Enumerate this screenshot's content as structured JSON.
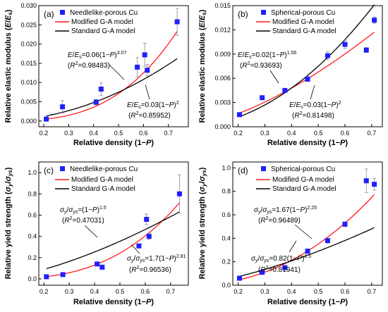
{
  "chart_data": [
    {
      "type": "scatter",
      "panel_label": "(a)",
      "xlabel": "Relative density (1−P)",
      "ylabel": "Relative elastic modulus (E/Es)",
      "xlim": [
        0.18,
        0.78
      ],
      "ylim": [
        -0.0015,
        0.03
      ],
      "xticks": [
        0.2,
        0.3,
        0.4,
        0.5,
        0.6,
        0.7
      ],
      "yticks": [
        0.0,
        0.005,
        0.01,
        0.015,
        0.02,
        0.025,
        0.03
      ],
      "ytick_labels": [
        "0.000",
        "0.005",
        "0.010",
        "0.015",
        "0.020",
        "0.025",
        "0.030"
      ],
      "legend": [
        "Needlelike-porous Cu",
        "Modified G-A model",
        "Standard G-A model"
      ],
      "colors": {
        "points": "#1f1fff",
        "modified": "#ff1a1a",
        "standard": "#000000"
      },
      "series": [
        {
          "name": "Needlelike-porous Cu",
          "x": [
            0.21,
            0.275,
            0.41,
            0.43,
            0.575,
            0.605,
            0.615,
            0.735
          ],
          "y": [
            0.0005,
            0.0037,
            0.0049,
            0.0083,
            0.014,
            0.0172,
            0.0132,
            0.0258
          ],
          "err": [
            0.0004,
            0.0016,
            0.0007,
            0.0016,
            0.0025,
            0.003,
            0.0015,
            0.0035
          ]
        }
      ],
      "curves": [
        {
          "name": "Modified G-A model",
          "a": 0.06,
          "n": 3.07
        },
        {
          "name": "Standard G-A model",
          "a": 0.03,
          "n": 2
        }
      ],
      "annotations": [
        {
          "eq": "E/Es=0.06(1−P)^3.07",
          "r2": "(R2=0.98483)"
        },
        {
          "eq": "E/Es=0.03(1−P)^2",
          "r2": "(R2=0.85952)"
        }
      ]
    },
    {
      "type": "scatter",
      "panel_label": "(b)",
      "xlabel": "Relative density (1−P)",
      "ylabel": "Relative elastic modulus (E/Es)",
      "xlim": [
        0.18,
        0.74
      ],
      "ylim": [
        0.0,
        0.015
      ],
      "xticks": [
        0.2,
        0.3,
        0.4,
        0.5,
        0.6,
        0.7
      ],
      "yticks": [
        0.0,
        0.003,
        0.006,
        0.009,
        0.012,
        0.015
      ],
      "ytick_labels": [
        "0.000",
        "0.003",
        "0.006",
        "0.009",
        "0.012",
        "0.015"
      ],
      "legend": [
        "Spherical-porous Cu",
        "Modified G-A model",
        "Standard G-A model"
      ],
      "colors": {
        "points": "#1f1fff",
        "modified": "#ff1a1a",
        "standard": "#000000"
      },
      "series": [
        {
          "name": "Spherical-porous Cu",
          "x": [
            0.205,
            0.29,
            0.375,
            0.46,
            0.535,
            0.6,
            0.68,
            0.71
          ],
          "y": [
            0.0015,
            0.0036,
            0.0045,
            0.0059,
            0.0088,
            0.0102,
            0.0095,
            0.0132
          ],
          "err": [
            0.0002,
            0.0002,
            0.0002,
            0.0003,
            0.0005,
            0.0005,
            0.0003,
            0.0004
          ]
        }
      ],
      "curves": [
        {
          "name": "Modified G-A model",
          "a": 0.02,
          "n": 1.56
        },
        {
          "name": "Standard G-A model",
          "a": 0.03,
          "n": 2
        }
      ],
      "annotations": [
        {
          "eq": "E/Es=0.02(1−P)^1.56",
          "r2": "(R2=0.93693)"
        },
        {
          "eq": "E/Es=0.03(1−P)^2",
          "r2": "(R2=0.81498)"
        }
      ]
    },
    {
      "type": "scatter",
      "panel_label": "(c)",
      "xlabel": "Relative density (1−P)",
      "ylabel": "Relative yield strength (σy/σys)",
      "xlim": [
        0.18,
        0.77
      ],
      "ylim": [
        -0.06,
        1.1
      ],
      "xticks": [
        0.2,
        0.3,
        0.4,
        0.5,
        0.6,
        0.7
      ],
      "yticks": [
        0.0,
        0.2,
        0.4,
        0.6,
        0.8,
        1.0
      ],
      "ytick_labels": [
        "0.0",
        "0.2",
        "0.4",
        "0.6",
        "0.8",
        "1.0"
      ],
      "legend": [
        "Needlelike-porous Cu",
        "Modified G-A model",
        "Standard G-A model"
      ],
      "colors": {
        "points": "#1f1fff",
        "modified": "#ff1a1a",
        "standard": "#000000"
      },
      "series": [
        {
          "name": "Needlelike-porous Cu",
          "x": [
            0.21,
            0.275,
            0.41,
            0.43,
            0.575,
            0.605,
            0.615,
            0.735
          ],
          "y": [
            0.02,
            0.04,
            0.14,
            0.11,
            0.31,
            0.56,
            0.4,
            0.8
          ],
          "err": [
            0.01,
            0.01,
            0.01,
            0.01,
            0.02,
            0.05,
            0.03,
            0.18
          ]
        }
      ],
      "curves": [
        {
          "name": "Modified G-A model",
          "a": 1.7,
          "n": 2.81
        },
        {
          "name": "Standard G-A model",
          "a": 1.0,
          "n": 1.5
        }
      ],
      "annotations": [
        {
          "eq": "σy/σys=(1−P)^1.5",
          "r2": "(R2=0.47031)"
        },
        {
          "eq": "σy/σys=1.7(1−P)^2.81",
          "r2": "(R2=0.96536)"
        }
      ]
    },
    {
      "type": "scatter",
      "panel_label": "(d)",
      "xlabel": "Relative density (1−P)",
      "ylabel": "Relative yield strength (σy/σys)",
      "xlim": [
        0.18,
        0.74
      ],
      "ylim": [
        0.0,
        1.05
      ],
      "xticks": [
        0.2,
        0.3,
        0.4,
        0.5,
        0.6,
        0.7
      ],
      "yticks": [
        0.0,
        0.2,
        0.4,
        0.6,
        0.8,
        1.0
      ],
      "ytick_labels": [
        "0.0",
        "0.2",
        "0.4",
        "0.6",
        "0.8",
        "1.0"
      ],
      "legend": [
        "Spherical-porous Cu",
        "Modified G-A model",
        "Standard G-A model"
      ],
      "colors": {
        "points": "#1f1fff",
        "modified": "#ff1a1a",
        "standard": "#000000"
      },
      "series": [
        {
          "name": "Spherical-porous Cu",
          "x": [
            0.205,
            0.29,
            0.375,
            0.46,
            0.535,
            0.6,
            0.68,
            0.71
          ],
          "y": [
            0.06,
            0.11,
            0.15,
            0.29,
            0.38,
            0.52,
            0.89,
            0.86
          ],
          "err": [
            0.01,
            0.01,
            0.01,
            0.02,
            0.02,
            0.02,
            0.1,
            0.05
          ]
        }
      ],
      "curves": [
        {
          "name": "Modified G-A model",
          "a": 1.67,
          "n": 2.25
        },
        {
          "name": "Standard G-A model",
          "a": 0.82,
          "n": 1.5
        }
      ],
      "annotations": [
        {
          "eq": "σy/σys=1.67(1−P)^2.25",
          "r2": "(R2=0.96489)"
        },
        {
          "eq": "σy/σys=0.82(1−P)^1.5",
          "r2": "(R2=0.81941)"
        }
      ]
    }
  ]
}
